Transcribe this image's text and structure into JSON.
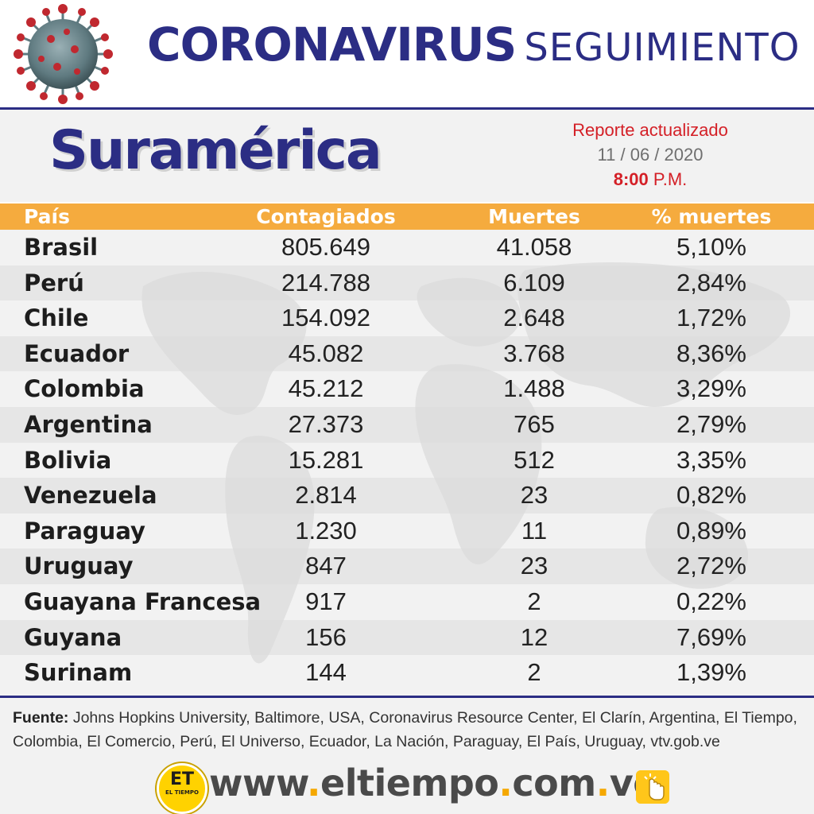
{
  "header": {
    "title_bold": "CORONAVIRUS",
    "title_light": "SEGUIMIENTO"
  },
  "region": "Suramérica",
  "report": {
    "label": "Reporte actualizado",
    "date": "11 / 06 / 2020",
    "time_bold": "8:00",
    "time_suffix": " P.M."
  },
  "table": {
    "headers": {
      "country": "País",
      "cases": "Contagiados",
      "deaths": "Muertes",
      "pct": "% muertes"
    },
    "rows": [
      {
        "country": "Brasil",
        "cases": "805.649",
        "deaths": "41.058",
        "pct": "5,10%"
      },
      {
        "country": "Perú",
        "cases": "214.788",
        "deaths": "6.109",
        "pct": "2,84%"
      },
      {
        "country": "Chile",
        "cases": "154.092",
        "deaths": "2.648",
        "pct": "1,72%"
      },
      {
        "country": "Ecuador",
        "cases": "45.082",
        "deaths": "3.768",
        "pct": "8,36%"
      },
      {
        "country": "Colombia",
        "cases": "45.212",
        "deaths": "1.488",
        "pct": "3,29%"
      },
      {
        "country": "Argentina",
        "cases": "27.373",
        "deaths": "765",
        "pct": "2,79%"
      },
      {
        "country": "Bolivia",
        "cases": "15.281",
        "deaths": "512",
        "pct": "3,35%"
      },
      {
        "country": "Venezuela",
        "cases": "2.814",
        "deaths": "23",
        "pct": "0,82%"
      },
      {
        "country": "Paraguay",
        "cases": "1.230",
        "deaths": "11",
        "pct": "0,89%"
      },
      {
        "country": "Uruguay",
        "cases": "847",
        "deaths": "23",
        "pct": "2,72%"
      },
      {
        "country": "Guayana Francesa",
        "cases": "917",
        "deaths": "2",
        "pct": "0,22%"
      },
      {
        "country": "Guyana",
        "cases": "156",
        "deaths": "12",
        "pct": "7,69%"
      },
      {
        "country": "Surinam",
        "cases": "144",
        "deaths": "2",
        "pct": "1,39%"
      }
    ]
  },
  "source": {
    "label": "Fuente:",
    "text": " Johns Hopkins University, Baltimore, USA, Coronavirus Resource Center,  El Clarín, Argentina, El Tiempo, Colombia, El Comercio, Perú, El Universo, Ecuador, La Nación, Paraguay, El País, Uruguay, vtv.gob.ve"
  },
  "footer": {
    "logo_text": "ET",
    "logo_sub": "EL TIEMPO",
    "url_parts": [
      "www",
      ".",
      "eltiempo",
      ".",
      "com",
      ".",
      "ve"
    ]
  },
  "colors": {
    "navy": "#2b2d84",
    "orange": "#f5ab3e",
    "red": "#d42027",
    "yellow": "#ffd200"
  },
  "icons": {
    "virus": "coronavirus-icon",
    "click": "click-hand-icon"
  }
}
